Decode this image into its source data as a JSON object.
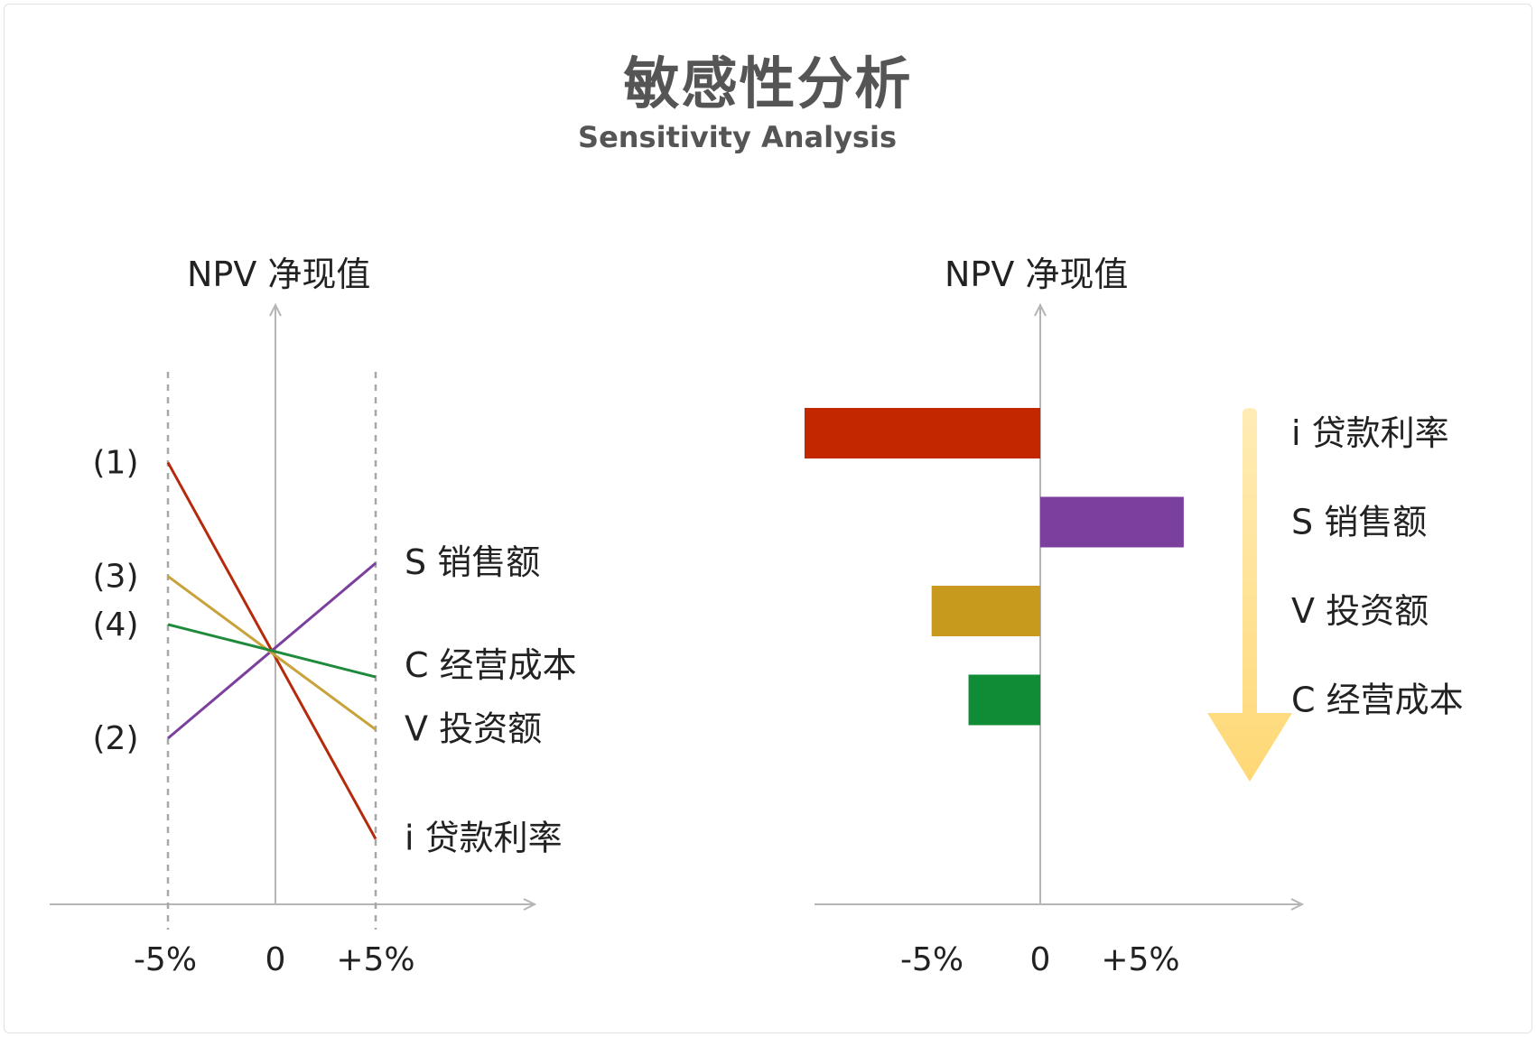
{
  "header": {
    "title": "敏感性分析",
    "subtitle": "Sensitivity Analysis"
  },
  "chart_data": [
    {
      "type": "line",
      "ylabel": "NPV 净现值",
      "x": [
        "-5%",
        "0",
        "+5%"
      ],
      "series": [
        {
          "name": "i 贷款利率",
          "marker": "(1)",
          "color": "#b52a0a",
          "left_value": 4.3,
          "right_value": -4.3
        },
        {
          "name": "S 销售额",
          "marker": "(2)",
          "color": "#7b3f9e",
          "left_value": -2.0,
          "right_value": 2.0
        },
        {
          "name": "V 投资额",
          "marker": "(3)",
          "color": "#c8a23a",
          "left_value": 1.7,
          "right_value": -1.8
        },
        {
          "name": "C 经营成本",
          "marker": "(4)",
          "color": "#1f8a3c",
          "left_value": 0.6,
          "right_value": -0.6
        }
      ]
    },
    {
      "type": "bar",
      "orientation": "horizontal",
      "ylabel": "NPV 净现值",
      "xticks": [
        "-5%",
        "0",
        "+5%"
      ],
      "categories": [
        "i 贷款利率",
        "S 销售额",
        "V 投资额",
        "C 经营成本"
      ],
      "values": [
        -11.5,
        7.0,
        -5.3,
        -3.5
      ],
      "colors": [
        "#c32700",
        "#7b3f9e",
        "#c7991c",
        "#0f8c35"
      ],
      "arrow_color": "#ffe08a"
    }
  ]
}
